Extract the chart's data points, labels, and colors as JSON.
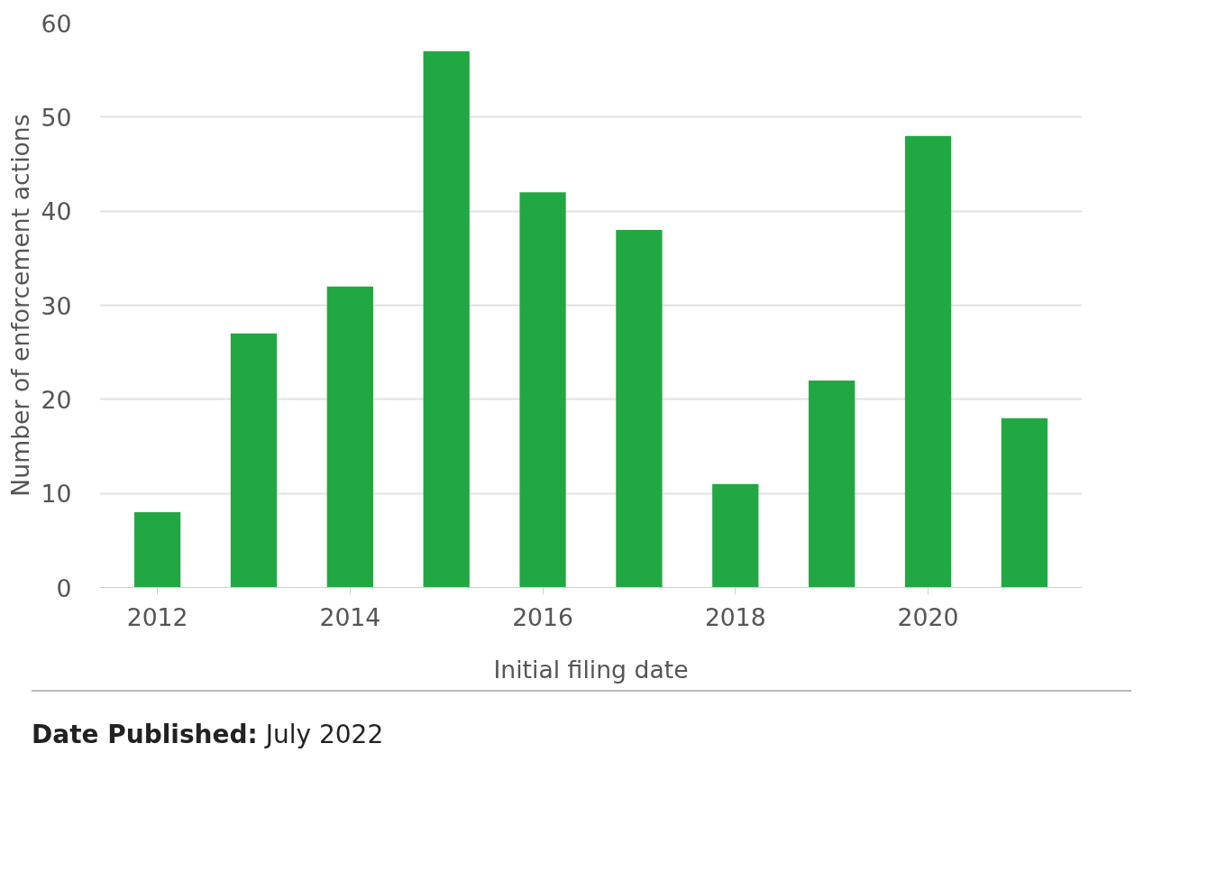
{
  "chart_data": {
    "type": "bar",
    "xlabel": "Initial filing date",
    "ylabel": "Number of enforcement actions",
    "x": [
      2012,
      2013,
      2014,
      2015,
      2016,
      2017,
      2018,
      2019,
      2020,
      2021
    ],
    "values": [
      8,
      27,
      32,
      57,
      42,
      38,
      11,
      22,
      48,
      18
    ],
    "color": "#22a843",
    "xlim": [
      2011.4,
      2021.6
    ],
    "xticks": [
      2012,
      2014,
      2016,
      2018,
      2020
    ],
    "ylim": [
      0,
      60
    ],
    "yticks": [
      0,
      10,
      20,
      30,
      40,
      50,
      60
    ],
    "grid": "y",
    "annotations": [
      "Date Published: July 2022"
    ]
  }
}
